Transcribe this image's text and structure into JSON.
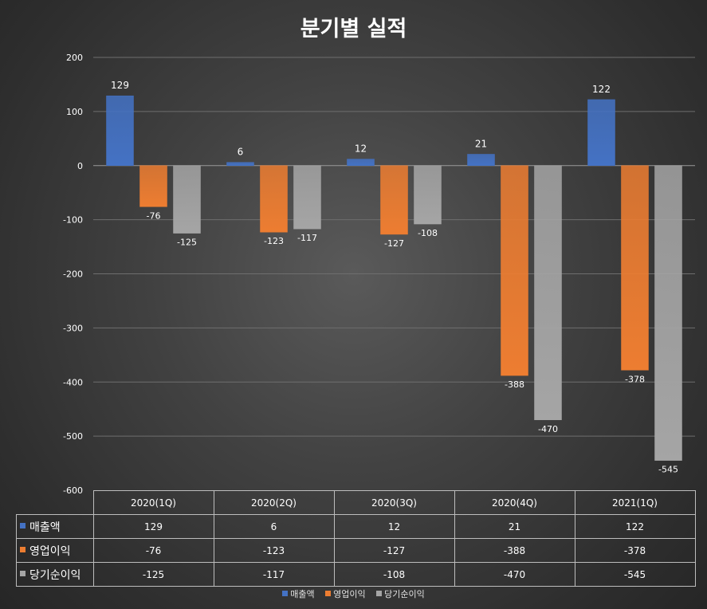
{
  "chart_data": {
    "type": "bar",
    "title": "분기별 실적",
    "categories": [
      "2020(1Q)",
      "2020(2Q)",
      "2020(3Q)",
      "2020(4Q)",
      "2021(1Q)"
    ],
    "series": [
      {
        "name": "매출액",
        "color": "#4472C4",
        "values": [
          129,
          6,
          12,
          21,
          122
        ],
        "labels": [
          "129",
          "6",
          "12",
          "21",
          "122"
        ]
      },
      {
        "name": "영업이익",
        "color": "#ED7D31",
        "values": [
          -76,
          -123,
          -127,
          -388,
          -378
        ],
        "labels": [
          "-76",
          "-123",
          "-127",
          "-388",
          "-378"
        ]
      },
      {
        "name": "당기순이익",
        "color": "#A5A5A5",
        "values": [
          -125,
          -117,
          -108,
          -470,
          -545
        ],
        "labels": [
          "-125",
          "-117",
          "-108",
          "-470",
          "-545"
        ]
      }
    ],
    "ylim": [
      -600,
      200
    ],
    "yticks": [
      "200",
      "100",
      "0",
      "-100",
      "-200",
      "-300",
      "-400",
      "-500",
      "-600"
    ],
    "grid": true,
    "legend": "bottom",
    "data_table": true
  }
}
